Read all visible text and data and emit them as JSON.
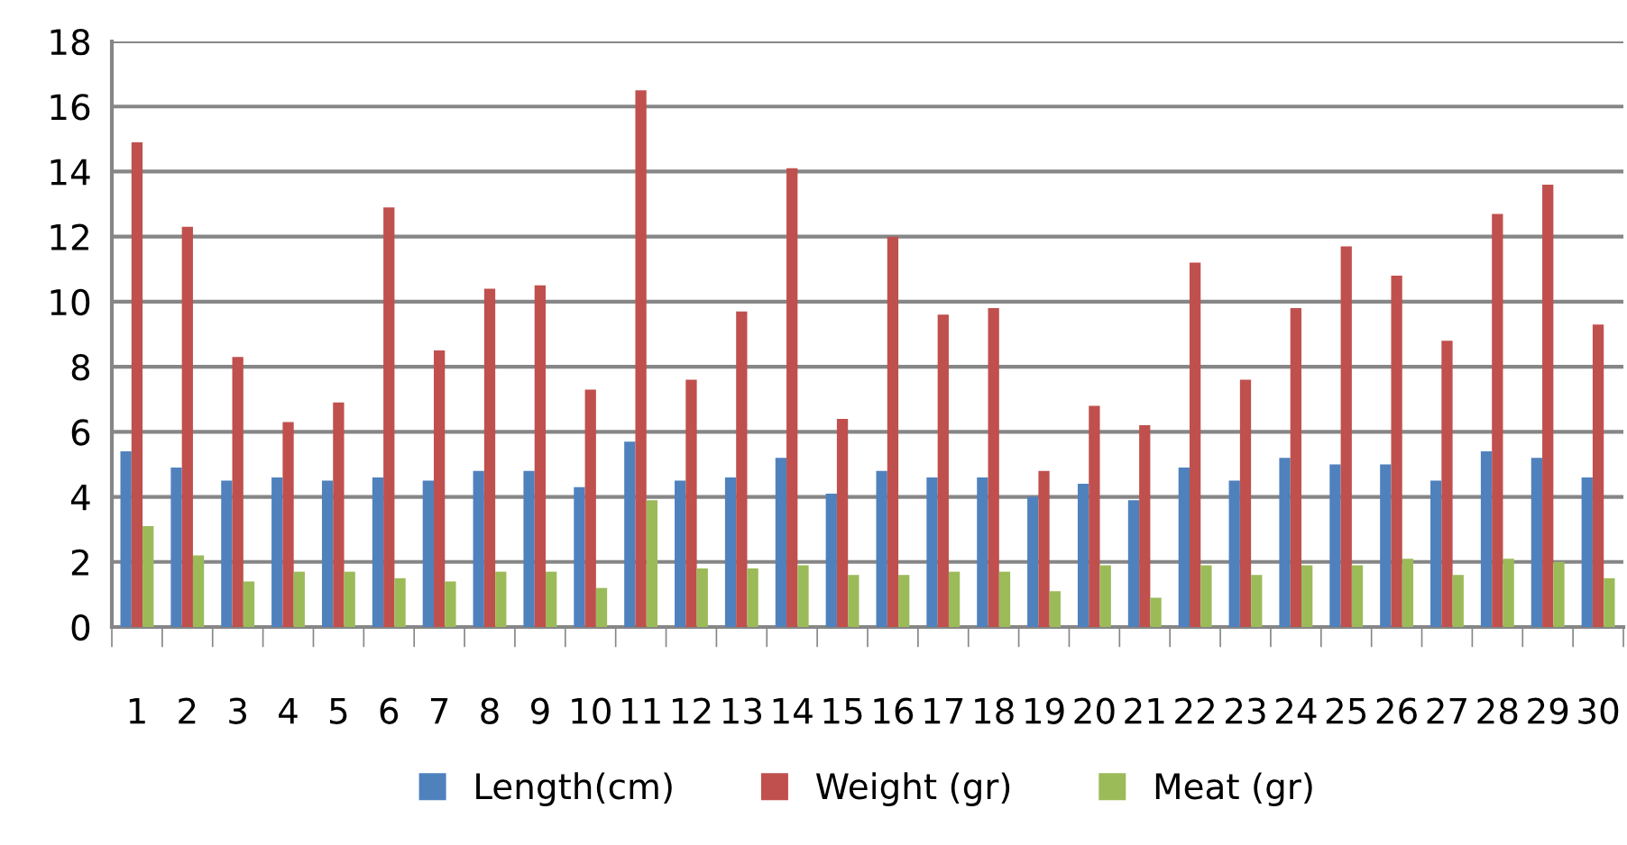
{
  "chart_data": {
    "type": "bar",
    "categories": [
      "1",
      "2",
      "3",
      "4",
      "5",
      "6",
      "7",
      "8",
      "9",
      "10",
      "11",
      "12",
      "13",
      "14",
      "15",
      "16",
      "17",
      "18",
      "19",
      "20",
      "21",
      "22",
      "23",
      "24",
      "25",
      "26",
      "27",
      "28",
      "29",
      "30"
    ],
    "series": [
      {
        "name": "Length(cm)",
        "color": "#4f81bd",
        "values": [
          5.4,
          4.9,
          4.5,
          4.6,
          4.5,
          4.6,
          4.5,
          4.8,
          4.8,
          4.3,
          5.7,
          4.5,
          4.6,
          5.2,
          4.1,
          4.8,
          4.6,
          4.6,
          4.0,
          4.4,
          3.9,
          4.9,
          4.5,
          5.2,
          5.0,
          5.0,
          4.5,
          5.4,
          5.2,
          4.6
        ]
      },
      {
        "name": "Weight (gr)",
        "color": "#c0504d",
        "values": [
          14.9,
          12.3,
          8.3,
          6.3,
          6.9,
          12.9,
          8.5,
          10.4,
          10.5,
          7.3,
          16.5,
          7.6,
          9.7,
          14.1,
          6.4,
          12.0,
          9.6,
          9.8,
          4.8,
          6.8,
          6.2,
          11.2,
          7.6,
          9.8,
          11.7,
          10.8,
          8.8,
          12.7,
          13.6,
          9.3
        ]
      },
      {
        "name": "Meat (gr)",
        "color": "#9bbb59",
        "values": [
          3.1,
          2.2,
          1.4,
          1.7,
          1.7,
          1.5,
          1.4,
          1.7,
          1.7,
          1.2,
          3.9,
          1.8,
          1.8,
          1.9,
          1.6,
          1.6,
          1.7,
          1.7,
          1.1,
          1.9,
          0.9,
          1.9,
          1.6,
          1.9,
          1.9,
          2.1,
          1.6,
          2.1,
          2.0,
          1.5
        ]
      }
    ],
    "ylim": [
      0,
      18
    ],
    "yticks": [
      0,
      2,
      4,
      6,
      8,
      10,
      12,
      14,
      16,
      18
    ],
    "grid": "y",
    "legend": "bottom"
  }
}
